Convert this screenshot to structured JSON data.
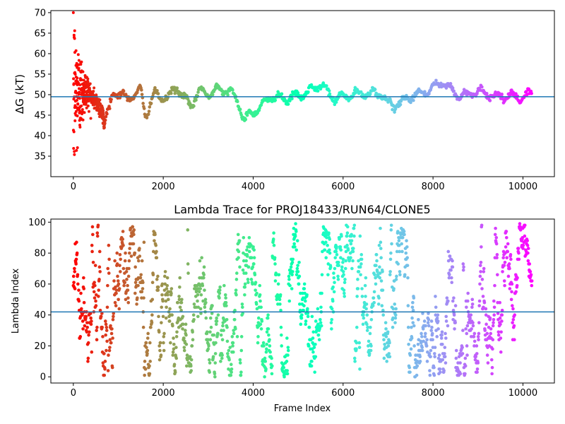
{
  "chart_data": [
    {
      "type": "scatter",
      "title": "",
      "xlabel": "",
      "ylabel": "ΔG (kT)",
      "xlim": [
        -500,
        10700
      ],
      "ylim": [
        30,
        70.5
      ],
      "xticks": [
        0,
        2000,
        4000,
        6000,
        8000,
        10000
      ],
      "yticks": [
        35,
        40,
        45,
        50,
        55,
        60,
        65,
        70
      ],
      "hline": 49.5,
      "hline_color": "#1f77b4",
      "colormap": "rainbow",
      "grid": false,
      "legend": "none",
      "trace_keypoints": [
        {
          "x": 0,
          "y": 50
        },
        {
          "x": 300,
          "y": 51
        },
        {
          "x": 600,
          "y": 47
        },
        {
          "x": 700,
          "y": 43
        },
        {
          "x": 900,
          "y": 51
        },
        {
          "x": 1200,
          "y": 49
        },
        {
          "x": 1500,
          "y": 51
        },
        {
          "x": 1600,
          "y": 45
        },
        {
          "x": 1800,
          "y": 50
        },
        {
          "x": 2100,
          "y": 49
        },
        {
          "x": 2300,
          "y": 52
        },
        {
          "x": 2600,
          "y": 47
        },
        {
          "x": 2800,
          "y": 51
        },
        {
          "x": 3000,
          "y": 50
        },
        {
          "x": 3200,
          "y": 51.5
        },
        {
          "x": 3500,
          "y": 51
        },
        {
          "x": 3700,
          "y": 47
        },
        {
          "x": 3800,
          "y": 44
        },
        {
          "x": 4200,
          "y": 47.5
        },
        {
          "x": 4400,
          "y": 49.5
        },
        {
          "x": 4800,
          "y": 49
        },
        {
          "x": 5200,
          "y": 50.5
        },
        {
          "x": 5500,
          "y": 52.5
        },
        {
          "x": 5800,
          "y": 49
        },
        {
          "x": 6200,
          "y": 50
        },
        {
          "x": 6800,
          "y": 50.5
        },
        {
          "x": 7100,
          "y": 47
        },
        {
          "x": 7500,
          "y": 49.5
        },
        {
          "x": 7900,
          "y": 51
        },
        {
          "x": 8200,
          "y": 53
        },
        {
          "x": 8600,
          "y": 49.5
        },
        {
          "x": 9000,
          "y": 51
        },
        {
          "x": 9400,
          "y": 49.5
        },
        {
          "x": 9800,
          "y": 49.5
        },
        {
          "x": 10000,
          "y": 49.3
        },
        {
          "x": 10200,
          "y": 50.5
        }
      ],
      "early_scatter_range": [
        31,
        70
      ],
      "n_frames": 10200
    },
    {
      "type": "scatter",
      "title": "Lambda Trace for PROJ18433/RUN64/CLONE5",
      "xlabel": "Frame Index",
      "ylabel": "Lambda Index",
      "xlim": [
        -500,
        10700
      ],
      "ylim": [
        -4,
        102
      ],
      "xticks": [
        0,
        2000,
        4000,
        6000,
        8000,
        10000
      ],
      "yticks": [
        0,
        20,
        40,
        60,
        80,
        100
      ],
      "hline": 42,
      "hline_color": "#1f77b4",
      "colormap": "rainbow",
      "grid": false,
      "legend": "none",
      "lambda_range": [
        0,
        99
      ],
      "n_frames": 10200
    }
  ]
}
